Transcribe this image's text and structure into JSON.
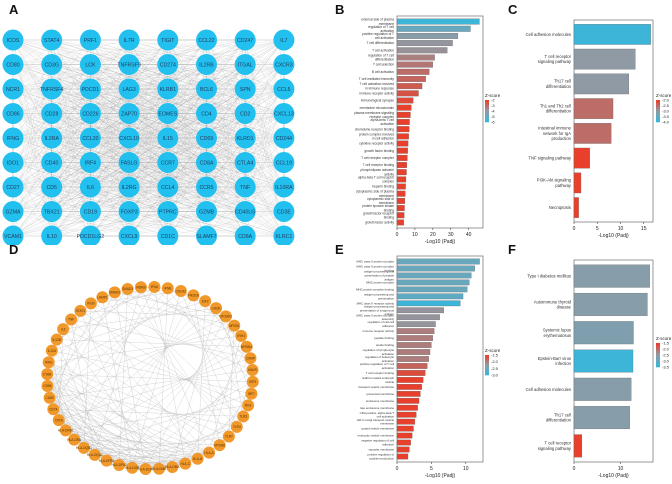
{
  "panels": {
    "A": {
      "label": "A"
    },
    "B": {
      "label": "B"
    },
    "C": {
      "label": "C"
    },
    "D": {
      "label": "D"
    },
    "E": {
      "label": "E"
    },
    "F": {
      "label": "F"
    }
  },
  "colors": {
    "nodeA": "#22c0ee",
    "nodeD": "#f0982a",
    "edge": "#b0b0b0",
    "low": "#e8402c",
    "mid": "#8f9aa4",
    "high": "#3db5d8"
  },
  "chart_data": [
    {
      "id": "A",
      "type": "network",
      "title": "",
      "nodes": [
        "ICOS",
        "STAT4",
        "PRF1",
        "IL7R",
        "TIGIT",
        "CCL22",
        "CD247",
        "IL7",
        "CD80",
        "CD3G",
        "LCK",
        "TNFRSF9",
        "CD274",
        "IL2RB",
        "ITGAL",
        "CXCR3",
        "NCR1",
        "TNFRSF4",
        "PDCD1",
        "LAG3",
        "KLRB1",
        "BCL6",
        "SPN",
        "CCL5",
        "CD86",
        "CD28",
        "CD226",
        "ZAP70",
        "EOMES",
        "CD4",
        "CD2",
        "CXCL13",
        "IFNG",
        "IL2RA",
        "CCL20",
        "CXCL10",
        "IL15",
        "CD69",
        "KLRD1",
        "CD244",
        "IDO1",
        "CD40",
        "IRF4",
        "FASLG",
        "CCR7",
        "CD8A",
        "CTLA4",
        "CCL19",
        "CD27",
        "CD5",
        "IL6",
        "IL2RG",
        "CCL4",
        "CCR5",
        "TNF",
        "IL10RA",
        "GZMA",
        "TBX21",
        "CD19",
        "FOXP3",
        "PTPRC",
        "GZMB",
        "CD40LG",
        "CD3E",
        "VCAM1",
        "IL10",
        "PDCD1LG2",
        "CXCL9",
        "CD1C",
        "SLAMF7",
        "CD8A",
        "KLRC1"
      ]
    },
    {
      "id": "B",
      "type": "bar",
      "orientation": "horizontal",
      "xlabel": "-Log10 (Padj)",
      "xticks": [
        0,
        10,
        20,
        30,
        40
      ],
      "xlim": [
        0,
        48
      ],
      "legend_title": "Z-score",
      "legend_ticks": [
        "-2",
        "-3",
        "-4",
        "-5",
        "-6"
      ],
      "categories": [
        "external side of plasma membrane",
        "regulation of T cell activation",
        "positive regulation of T cell activation",
        "T cell differentiation",
        "T cell activation",
        "regulation of T cell differentiation",
        "T cell selection",
        "B cell activation",
        "T cell mediated immunity",
        "T cell activation involved in immune response",
        "immune receptor activity",
        "immunological synapse",
        "membrane microdomain",
        "plasma membrane signaling receptor complex",
        "alpha-beta T cell activation",
        "chemokine receptor binding",
        "protein complex involved in cell adhesion",
        "cytokine receptor activity",
        "growth factor binding",
        "T cell receptor complex",
        "T cell receptor binding",
        "phospholipase activator activity",
        "alpha-beta T cell receptor complex",
        "heparin binding",
        "cytoplasmic side of plasma membrane",
        "cytoplasmic side of membrane",
        "protein tyrosine kinase binding",
        "growth factor receptor binding",
        "growth factor activity"
      ],
      "values": [
        46,
        41,
        34,
        31,
        28,
        21,
        20,
        18,
        16,
        14,
        12,
        9,
        8,
        7.5,
        7,
        6.8,
        6.5,
        6.2,
        6,
        5.8,
        5.5,
        5.3,
        5,
        4.8,
        4.6,
        4.4,
        4.2,
        4,
        3.8
      ],
      "zscores": [
        -6,
        -5,
        -4.2,
        -3.9,
        -3.8,
        -3.4,
        -3.2,
        -3,
        -2.8,
        -2.6,
        -2.4,
        -2.2,
        -2,
        -2,
        -2,
        -2,
        -2,
        -2,
        -2,
        -2,
        -2,
        -2,
        -2,
        -2,
        -2,
        -2,
        -2,
        -2,
        -2
      ]
    },
    {
      "id": "C",
      "type": "bar",
      "orientation": "horizontal",
      "xlabel": "-Log10 (Padj)",
      "xticks": [
        0,
        5,
        10,
        15
      ],
      "xlim": [
        0,
        17
      ],
      "legend_title": "Z-score",
      "legend_ticks": [
        "-2.0",
        "-2.5",
        "-3.0",
        "-3.5",
        "-4.0"
      ],
      "categories": [
        "Cell adhesion molecules",
        "T cell receptor signaling pathway",
        "Th17 cell differentiation",
        "Th1 and Th2 cell differentiation",
        "Intestinal immune network for IgA production",
        "TNF signaling pathway",
        "PI3K-Akt signaling pathway",
        "Necroptosis"
      ],
      "values": [
        16.5,
        13.2,
        11.8,
        8.4,
        8.0,
        3.4,
        1.5,
        1.0
      ],
      "zscores": [
        -4.0,
        -3.0,
        -3.0,
        -2.5,
        -2.5,
        -2.0,
        -2.0,
        -2.0
      ]
    },
    {
      "id": "D",
      "type": "network",
      "title": "",
      "nodes": [
        "SMAD2",
        "SMAD3",
        "IKBKB",
        "IFNA",
        "IFNB",
        "CDC42",
        "PIK3CA",
        "EIF2",
        "CHUK",
        "EIF2AK2",
        "NFKB1",
        "IFIH1",
        "NFKBIA",
        "CAMP",
        "MAVS",
        "IRF3",
        "IRF7",
        "RIGI",
        "TLR3",
        "TLR4",
        "TLR7",
        "MYD88",
        "HLA-A",
        "HLA-B",
        "HLA-C",
        "HLA-DMA",
        "HLA-DMB",
        "HLA-DOA",
        "HLA-DOB",
        "HLA-DPA1",
        "HLA-DPB1",
        "HLA-DQA1",
        "HLA-DQB1",
        "HLA-DRA",
        "HLA-DRB1",
        "CIITA",
        "CD74",
        "CD80",
        "CD86",
        "CYBB",
        "IFNG",
        "IL12A",
        "IL12B",
        "IL6",
        "TNF",
        "STAT1",
        "IFI30",
        "LAMP1"
      ]
    },
    {
      "id": "E",
      "type": "bar",
      "orientation": "horizontal",
      "xlabel": "-Log10 (Padj)",
      "xticks": [
        0,
        5,
        10
      ],
      "xlim": [
        0,
        12.5
      ],
      "legend_title": "Z-score",
      "legend_ticks": [
        "-1.5",
        "-2.0",
        "-2.5",
        "-3.0"
      ],
      "categories": [
        "MHC class II protein complex",
        "MHC class II protein complex binding",
        "antigen processing and presentation of peptide antigen",
        "MHC protein complex",
        "MHC protein complex binding",
        "antigen processing and presentation",
        "MHC class II receptor activity",
        "antigen processing and presentation of exogenous antigen",
        "MHC class II protein complex assembly",
        "regulation of cell-cell adhesion",
        "immune receptor activity",
        "peptide binding",
        "amide binding",
        "regulation of lymphocyte activation",
        "regulation of leukocyte activation",
        "positive regulation of T cell activation",
        "T cell receptor binding",
        "clathrin-coated endocytic vesicle",
        "transport vesicle membrane",
        "lysosomal membrane",
        "endosome membrane",
        "late endosome membrane",
        "CD4-positive, alpha-beta T cell activation",
        "ER to Golgi transport vesicle membrane",
        "coated vesicle membrane",
        "endocytic vesicle membrane",
        "negative regulation of cell adhesion",
        "vacuolar membrane",
        "positive regulation of cytokine production"
      ],
      "values": [
        12,
        11.3,
        10.8,
        10.5,
        10.2,
        9.6,
        9.2,
        6.8,
        6.2,
        5.6,
        5.4,
        5.2,
        5.0,
        4.8,
        4.6,
        4.4,
        4.1,
        3.8,
        3.6,
        3.4,
        3.2,
        3.0,
        2.8,
        2.6,
        2.4,
        2.2,
        2.0,
        1.8,
        1.6
      ],
      "zscores": [
        -2.6,
        -2.6,
        -2.6,
        -2.6,
        -2.6,
        -2.7,
        -3.0,
        -2.2,
        -2.2,
        -2.2,
        -2.0,
        -2.0,
        -2.0,
        -2.0,
        -2.0,
        -1.8,
        -1.6,
        -1.5,
        -1.5,
        -1.5,
        -1.5,
        -1.5,
        -1.5,
        -1.5,
        -1.5,
        -1.5,
        -1.5,
        -1.5,
        -1.5
      ]
    },
    {
      "id": "F",
      "type": "bar",
      "orientation": "horizontal",
      "xlabel": "-Log10 (Padj)",
      "xticks": [
        0,
        10
      ],
      "xlim": [
        0,
        17
      ],
      "legend_title": "Z-score",
      "legend_ticks": [
        "-1.5",
        "-2.0",
        "-2.5",
        "-3.0",
        "-3.5"
      ],
      "categories": [
        "Type I diabetes mellitus",
        "Autoimmune thyroid disease",
        "Systemic lupus erythematosus",
        "Epstein-Barr virus infection",
        "Cell adhesion molecules",
        "Th17 cell differentiation",
        "T cell receptor signaling pathway"
      ],
      "values": [
        16.3,
        15.8,
        12.8,
        12.7,
        12.3,
        12.0,
        1.7
      ],
      "zscores": [
        -2.6,
        -2.6,
        -2.7,
        -3.5,
        -2.6,
        -2.6,
        -1.5
      ]
    }
  ]
}
